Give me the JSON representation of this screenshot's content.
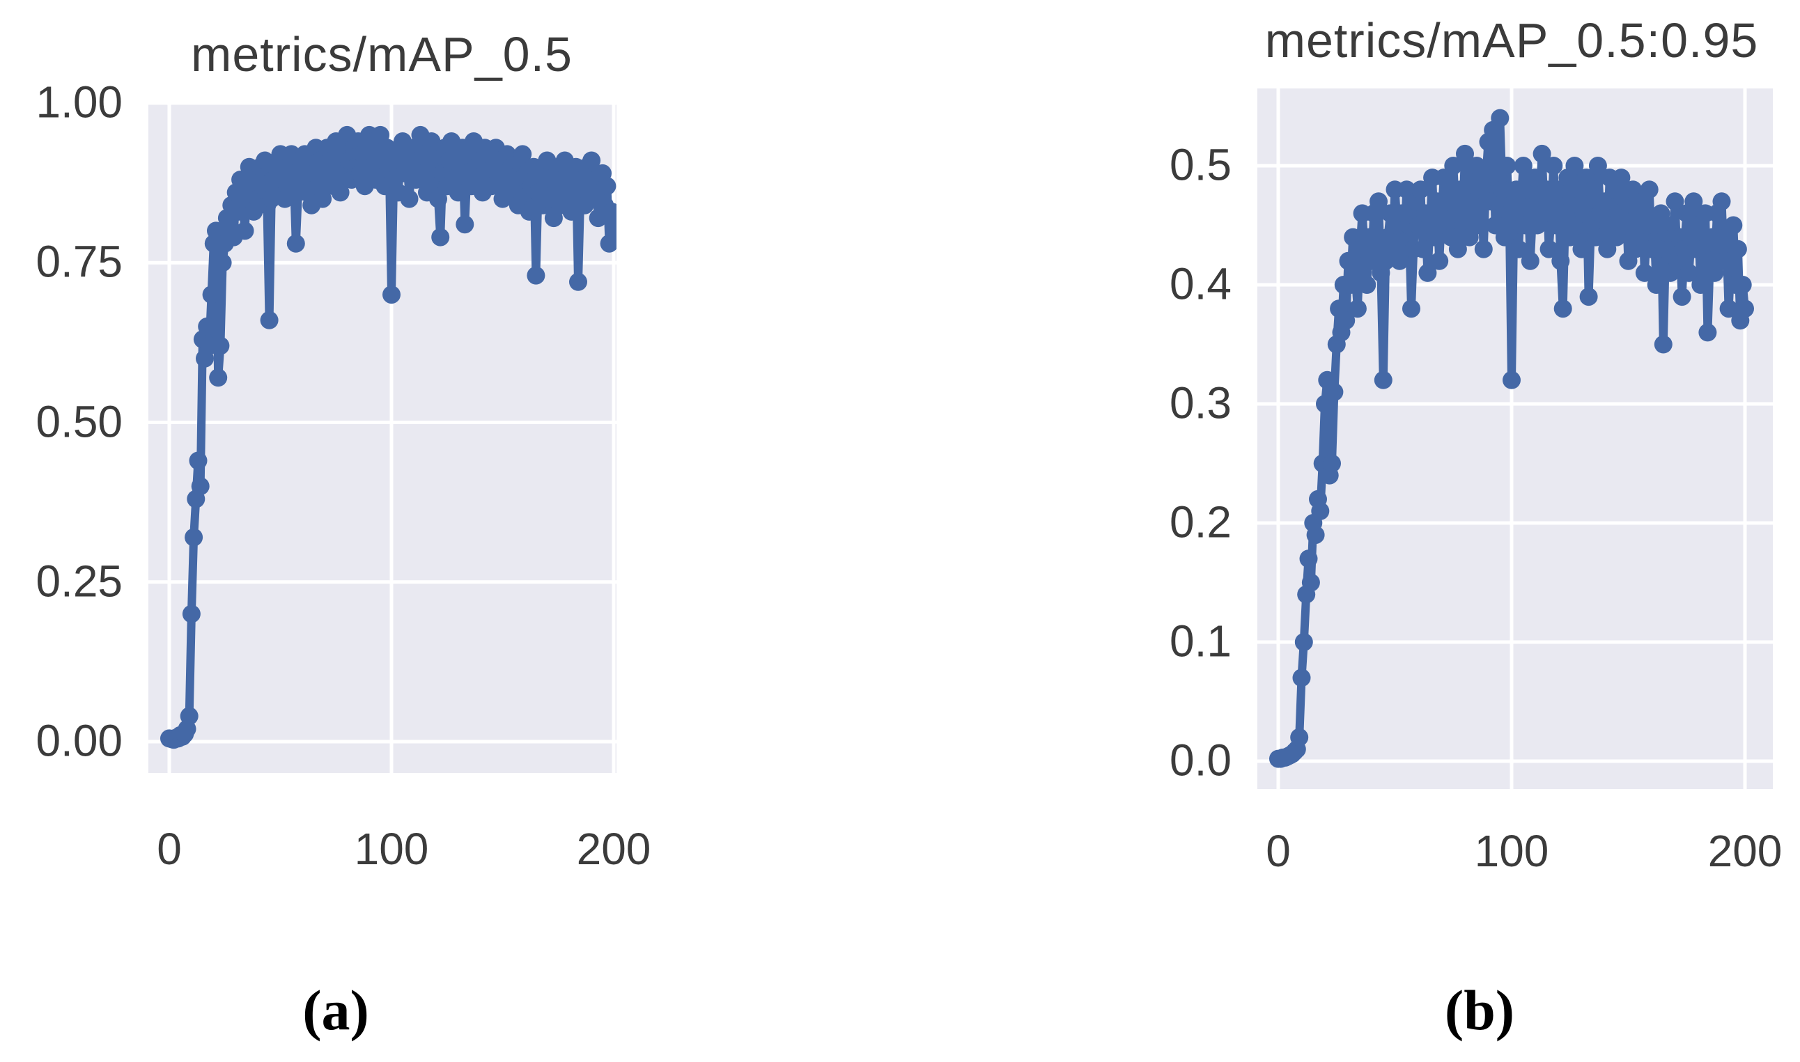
{
  "figure": {
    "captions": [
      "(a)",
      "(b)"
    ],
    "background": "#ffffff"
  },
  "colors": {
    "line": "#4468a6",
    "plot_bg": "#e9e9f1",
    "grid": "#ffffff",
    "text": "#3b3b3b",
    "caption_text": "#000000"
  },
  "chart_data": [
    {
      "type": "line",
      "title": "metrics/mAP_0.5",
      "xlabel": "",
      "ylabel": "",
      "legend": [],
      "grid": true,
      "marker": "circle",
      "xlim": [
        -9,
        201
      ],
      "ylim": [
        -0.05,
        1.0
      ],
      "xticks": [
        0,
        100,
        200
      ],
      "xtick_labels": [
        "0",
        "100",
        "200"
      ],
      "yticks": [
        0.0,
        0.25,
        0.5,
        0.75,
        1.0
      ],
      "ytick_labels": [
        "0.00",
        "0.25",
        "0.50",
        "0.75",
        "1.00"
      ],
      "x": [
        0,
        1,
        2,
        3,
        4,
        5,
        6,
        7,
        8,
        9,
        10,
        11,
        12,
        13,
        14,
        15,
        16,
        17,
        18,
        19,
        20,
        21,
        22,
        23,
        24,
        25,
        26,
        27,
        28,
        29,
        30,
        31,
        32,
        33,
        34,
        35,
        36,
        37,
        38,
        39,
        40,
        41,
        42,
        43,
        44,
        45,
        46,
        47,
        48,
        49,
        50,
        51,
        52,
        53,
        54,
        55,
        56,
        57,
        58,
        59,
        60,
        61,
        62,
        63,
        64,
        65,
        66,
        67,
        68,
        69,
        70,
        71,
        72,
        73,
        74,
        75,
        76,
        77,
        78,
        79,
        80,
        81,
        82,
        83,
        84,
        85,
        86,
        87,
        88,
        89,
        90,
        91,
        92,
        93,
        94,
        95,
        96,
        97,
        98,
        99,
        100,
        101,
        102,
        103,
        104,
        105,
        106,
        107,
        108,
        109,
        110,
        111,
        112,
        113,
        114,
        115,
        116,
        117,
        118,
        119,
        120,
        121,
        122,
        123,
        124,
        125,
        126,
        127,
        128,
        129,
        130,
        131,
        132,
        133,
        134,
        135,
        136,
        137,
        138,
        139,
        140,
        141,
        142,
        143,
        144,
        145,
        146,
        147,
        148,
        149,
        150,
        151,
        152,
        153,
        154,
        155,
        156,
        157,
        158,
        159,
        160,
        161,
        162,
        163,
        164,
        165,
        166,
        167,
        168,
        169,
        170,
        171,
        172,
        173,
        174,
        175,
        176,
        177,
        178,
        179,
        180,
        181,
        182,
        183,
        184,
        185,
        186,
        187,
        188,
        189,
        190,
        191,
        192,
        193,
        194,
        195,
        196,
        197,
        198,
        199,
        200
      ],
      "values": [
        0.005,
        0.004,
        0.003,
        0.006,
        0.005,
        0.01,
        0.008,
        0.012,
        0.02,
        0.04,
        0.2,
        0.32,
        0.38,
        0.44,
        0.4,
        0.63,
        0.6,
        0.65,
        0.62,
        0.7,
        0.78,
        0.8,
        0.57,
        0.62,
        0.75,
        0.78,
        0.82,
        0.8,
        0.84,
        0.79,
        0.86,
        0.83,
        0.88,
        0.85,
        0.8,
        0.87,
        0.9,
        0.86,
        0.83,
        0.88,
        0.85,
        0.9,
        0.87,
        0.91,
        0.84,
        0.66,
        0.85,
        0.88,
        0.9,
        0.86,
        0.92,
        0.88,
        0.85,
        0.9,
        0.87,
        0.92,
        0.89,
        0.78,
        0.86,
        0.91,
        0.88,
        0.92,
        0.86,
        0.9,
        0.84,
        0.89,
        0.93,
        0.87,
        0.91,
        0.85,
        0.9,
        0.93,
        0.88,
        0.91,
        0.87,
        0.94,
        0.9,
        0.86,
        0.92,
        0.89,
        0.95,
        0.91,
        0.88,
        0.93,
        0.9,
        0.94,
        0.89,
        0.92,
        0.87,
        0.93,
        0.95,
        0.9,
        0.94,
        0.88,
        0.92,
        0.95,
        0.91,
        0.87,
        0.93,
        0.9,
        0.7,
        0.88,
        0.92,
        0.86,
        0.91,
        0.94,
        0.89,
        0.92,
        0.85,
        0.9,
        0.93,
        0.88,
        0.91,
        0.95,
        0.89,
        0.92,
        0.86,
        0.9,
        0.94,
        0.88,
        0.92,
        0.85,
        0.79,
        0.89,
        0.93,
        0.87,
        0.91,
        0.94,
        0.88,
        0.92,
        0.86,
        0.9,
        0.93,
        0.81,
        0.89,
        0.92,
        0.87,
        0.94,
        0.9,
        0.88,
        0.91,
        0.86,
        0.93,
        0.89,
        0.92,
        0.87,
        0.9,
        0.93,
        0.88,
        0.91,
        0.85,
        0.89,
        0.92,
        0.86,
        0.9,
        0.87,
        0.91,
        0.84,
        0.88,
        0.92,
        0.86,
        0.89,
        0.83,
        0.87,
        0.9,
        0.73,
        0.86,
        0.89,
        0.84,
        0.88,
        0.91,
        0.85,
        0.88,
        0.82,
        0.87,
        0.9,
        0.84,
        0.88,
        0.91,
        0.86,
        0.89,
        0.83,
        0.87,
        0.9,
        0.72,
        0.85,
        0.88,
        0.84,
        0.9,
        0.87,
        0.91,
        0.85,
        0.88,
        0.82,
        0.86,
        0.89,
        0.84,
        0.87,
        0.78,
        0.83,
        0.8
      ]
    },
    {
      "type": "line",
      "title": "metrics/mAP_0.5:0.95",
      "xlabel": "",
      "ylabel": "",
      "legend": [],
      "grid": true,
      "marker": "circle",
      "xlim": [
        -9,
        212
      ],
      "ylim": [
        -0.025,
        0.565
      ],
      "xticks": [
        0,
        100,
        200
      ],
      "xtick_labels": [
        "0",
        "100",
        "200"
      ],
      "yticks": [
        0.0,
        0.1,
        0.2,
        0.3,
        0.4,
        0.5
      ],
      "ytick_labels": [
        "0.0",
        "0.1",
        "0.2",
        "0.3",
        "0.4",
        "0.5"
      ],
      "x": [
        0,
        1,
        2,
        3,
        4,
        5,
        6,
        7,
        8,
        9,
        10,
        11,
        12,
        13,
        14,
        15,
        16,
        17,
        18,
        19,
        20,
        21,
        22,
        23,
        24,
        25,
        26,
        27,
        28,
        29,
        30,
        31,
        32,
        33,
        34,
        35,
        36,
        37,
        38,
        39,
        40,
        41,
        42,
        43,
        44,
        45,
        46,
        47,
        48,
        49,
        50,
        51,
        52,
        53,
        54,
        55,
        56,
        57,
        58,
        59,
        60,
        61,
        62,
        63,
        64,
        65,
        66,
        67,
        68,
        69,
        70,
        71,
        72,
        73,
        74,
        75,
        76,
        77,
        78,
        79,
        80,
        81,
        82,
        83,
        84,
        85,
        86,
        87,
        88,
        89,
        90,
        91,
        92,
        93,
        94,
        95,
        96,
        97,
        98,
        99,
        100,
        101,
        102,
        103,
        104,
        105,
        106,
        107,
        108,
        109,
        110,
        111,
        112,
        113,
        114,
        115,
        116,
        117,
        118,
        119,
        120,
        121,
        122,
        123,
        124,
        125,
        126,
        127,
        128,
        129,
        130,
        131,
        132,
        133,
        134,
        135,
        136,
        137,
        138,
        139,
        140,
        141,
        142,
        143,
        144,
        145,
        146,
        147,
        148,
        149,
        150,
        151,
        152,
        153,
        154,
        155,
        156,
        157,
        158,
        159,
        160,
        161,
        162,
        163,
        164,
        165,
        166,
        167,
        168,
        169,
        170,
        171,
        172,
        173,
        174,
        175,
        176,
        177,
        178,
        179,
        180,
        181,
        182,
        183,
        184,
        185,
        186,
        187,
        188,
        189,
        190,
        191,
        192,
        193,
        194,
        195,
        196,
        197,
        198,
        199,
        200
      ],
      "values": [
        0.002,
        0.002,
        0.003,
        0.003,
        0.004,
        0.005,
        0.006,
        0.008,
        0.01,
        0.02,
        0.07,
        0.1,
        0.14,
        0.17,
        0.15,
        0.2,
        0.19,
        0.22,
        0.21,
        0.25,
        0.3,
        0.32,
        0.24,
        0.25,
        0.31,
        0.35,
        0.38,
        0.36,
        0.4,
        0.37,
        0.42,
        0.4,
        0.44,
        0.41,
        0.38,
        0.43,
        0.46,
        0.43,
        0.4,
        0.44,
        0.42,
        0.46,
        0.43,
        0.47,
        0.41,
        0.32,
        0.42,
        0.44,
        0.46,
        0.43,
        0.48,
        0.45,
        0.42,
        0.46,
        0.43,
        0.48,
        0.45,
        0.38,
        0.43,
        0.47,
        0.45,
        0.48,
        0.43,
        0.46,
        0.41,
        0.45,
        0.49,
        0.44,
        0.47,
        0.42,
        0.46,
        0.49,
        0.45,
        0.47,
        0.44,
        0.5,
        0.46,
        0.43,
        0.48,
        0.45,
        0.51,
        0.47,
        0.44,
        0.49,
        0.46,
        0.5,
        0.45,
        0.48,
        0.43,
        0.49,
        0.52,
        0.47,
        0.53,
        0.45,
        0.49,
        0.54,
        0.48,
        0.44,
        0.5,
        0.46,
        0.32,
        0.45,
        0.48,
        0.43,
        0.47,
        0.5,
        0.45,
        0.48,
        0.42,
        0.46,
        0.49,
        0.45,
        0.47,
        0.51,
        0.46,
        0.48,
        0.43,
        0.46,
        0.5,
        0.45,
        0.48,
        0.42,
        0.38,
        0.46,
        0.49,
        0.44,
        0.47,
        0.5,
        0.45,
        0.48,
        0.43,
        0.46,
        0.49,
        0.39,
        0.45,
        0.48,
        0.44,
        0.5,
        0.46,
        0.44,
        0.47,
        0.43,
        0.49,
        0.45,
        0.48,
        0.44,
        0.46,
        0.49,
        0.45,
        0.47,
        0.42,
        0.45,
        0.48,
        0.43,
        0.46,
        0.44,
        0.47,
        0.41,
        0.45,
        0.48,
        0.43,
        0.45,
        0.4,
        0.43,
        0.46,
        0.35,
        0.43,
        0.45,
        0.41,
        0.44,
        0.47,
        0.42,
        0.44,
        0.39,
        0.43,
        0.46,
        0.41,
        0.44,
        0.47,
        0.43,
        0.45,
        0.4,
        0.43,
        0.46,
        0.36,
        0.42,
        0.44,
        0.41,
        0.46,
        0.43,
        0.47,
        0.42,
        0.44,
        0.38,
        0.42,
        0.45,
        0.4,
        0.43,
        0.37,
        0.4,
        0.38
      ]
    }
  ]
}
